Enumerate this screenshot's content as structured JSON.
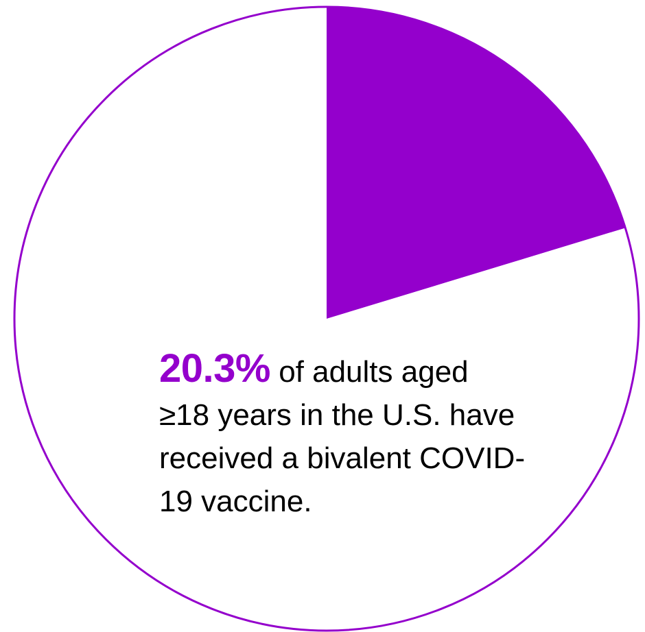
{
  "chart_data": {
    "type": "pie",
    "title": "",
    "slices": [
      {
        "value": 20.3,
        "color": "#9400cc"
      },
      {
        "value": 79.7,
        "color": "#ffffff"
      }
    ],
    "outline_color": "#9400cc",
    "callout": {
      "value_text": "20.3%",
      "line1_rest": " of adults aged",
      "line2": "≥18 years in the U.S. have",
      "line3": "received a bivalent COVID-",
      "line4": "19 vaccine."
    }
  }
}
